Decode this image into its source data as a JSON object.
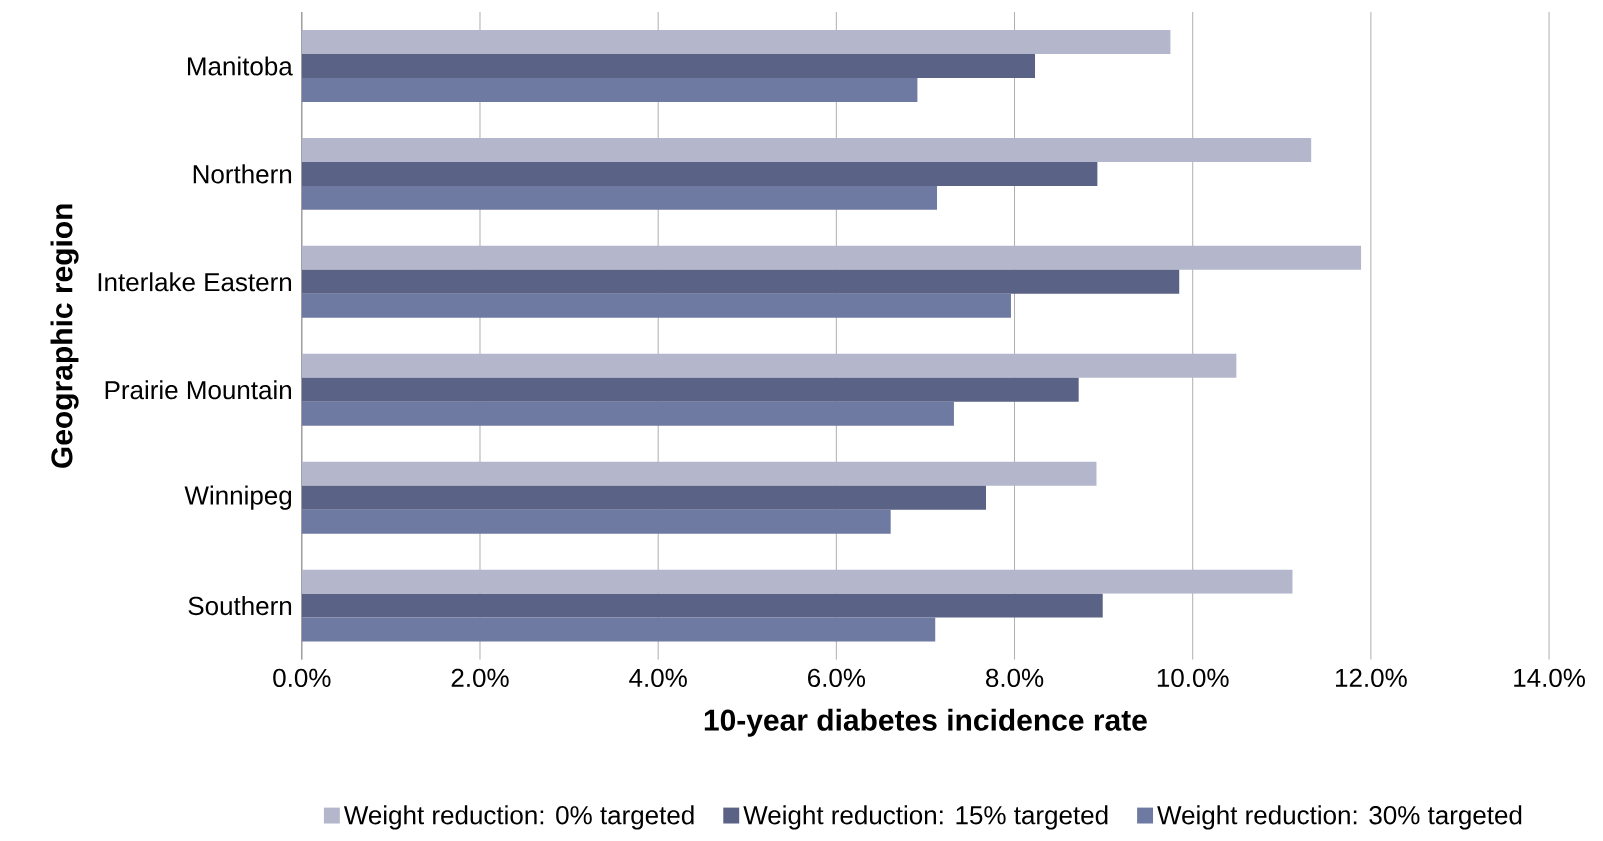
{
  "chart_data": {
    "type": "bar",
    "orientation": "horizontal",
    "xlabel": "10-year diabetes incidence rate",
    "ylabel": "Geographic region",
    "categories": [
      "Manitoba",
      "Northern",
      "Interlake Eastern",
      "Prairie Mountain",
      "Winnipeg",
      "Southern"
    ],
    "series": [
      {
        "name": "Weight reduction: 0% targeted",
        "color": "#b4b7cb",
        "values": [
          9.75,
          11.33,
          11.89,
          10.49,
          8.92,
          11.12
        ]
      },
      {
        "name": "Weight reduction: 15% targeted",
        "color": "#5a6285",
        "values": [
          8.23,
          8.93,
          9.85,
          8.72,
          7.68,
          8.99
        ]
      },
      {
        "name": "Weight reduction: 30% targeted",
        "color": "#6f7aa3",
        "values": [
          6.91,
          7.13,
          7.96,
          7.32,
          6.61,
          7.11
        ]
      }
    ],
    "xlim": [
      0,
      14
    ],
    "xticks": [
      {
        "value": 0,
        "label": "0.0%"
      },
      {
        "value": 2,
        "label": "2.0%"
      },
      {
        "value": 4,
        "label": "4.0%"
      },
      {
        "value": 6,
        "label": "6.0%"
      },
      {
        "value": 8,
        "label": "8.0%"
      },
      {
        "value": 10,
        "label": "10.0%"
      },
      {
        "value": 12,
        "label": "12.0%"
      },
      {
        "value": 14,
        "label": "14.0%"
      }
    ],
    "grid": "x",
    "legend": "bottom"
  }
}
